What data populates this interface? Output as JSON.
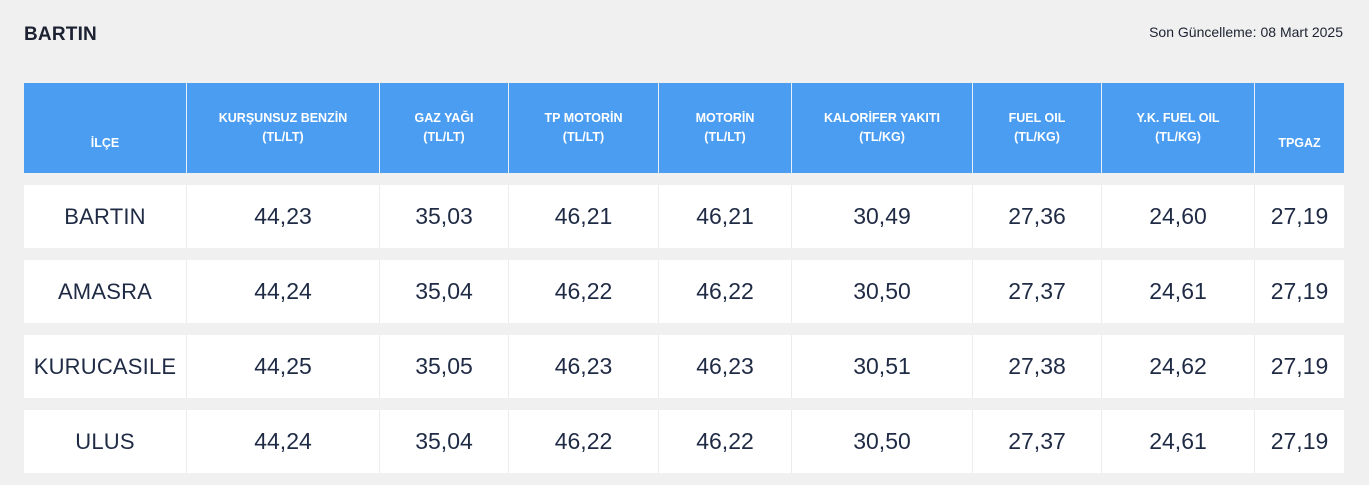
{
  "page": {
    "title": "BARTIN",
    "last_update_label": "Son Güncelleme:",
    "last_update_date": "08 Mart 2025"
  },
  "table": {
    "headers": [
      {
        "name": "İLÇE",
        "unit": ""
      },
      {
        "name": "KURŞUNSUZ BENZİN",
        "unit": "(TL/LT)"
      },
      {
        "name": "GAZ YAĞI",
        "unit": "(TL/LT)"
      },
      {
        "name": "TP MOTORİN",
        "unit": "(TL/LT)"
      },
      {
        "name": "MOTORİN",
        "unit": "(TL/LT)"
      },
      {
        "name": "KALORİFER YAKITI",
        "unit": "(TL/KG)"
      },
      {
        "name": "FUEL OIL",
        "unit": "(TL/KG)"
      },
      {
        "name": "Y.K. FUEL OIL",
        "unit": "(TL/KG)"
      },
      {
        "name": "TPGAZ",
        "unit": ""
      }
    ],
    "rows": [
      [
        "BARTIN",
        "44,23",
        "35,03",
        "46,21",
        "46,21",
        "30,49",
        "27,36",
        "24,60",
        "27,19"
      ],
      [
        "AMASRA",
        "44,24",
        "35,04",
        "46,22",
        "46,22",
        "30,50",
        "27,37",
        "24,61",
        "27,19"
      ],
      [
        "KURUCASILE",
        "44,25",
        "35,05",
        "46,23",
        "46,23",
        "30,51",
        "27,38",
        "24,62",
        "27,19"
      ],
      [
        "ULUS",
        "44,24",
        "35,04",
        "46,22",
        "46,22",
        "30,50",
        "27,37",
        "24,61",
        "27,19"
      ]
    ]
  },
  "colors": {
    "header_bg": "#4b9df2",
    "page_bg": "#f0f0f0",
    "row_bg": "#ffffff",
    "text": "#1f2a44"
  }
}
